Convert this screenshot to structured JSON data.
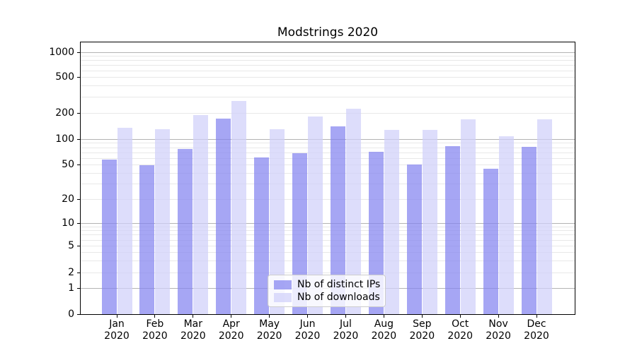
{
  "chart_data": {
    "type": "bar",
    "title": "Modstrings 2020",
    "xlabel": "",
    "ylabel": "",
    "yscale": "symlog",
    "grid": true,
    "legend_position": "lower center",
    "yticks": [
      0,
      1,
      2,
      5,
      10,
      20,
      50,
      100,
      200,
      500,
      1000
    ],
    "ylim": [
      0,
      1200
    ],
    "categories": [
      "Jan 2020",
      "Feb 2020",
      "Mar 2020",
      "Apr 2020",
      "May 2020",
      "Jun 2020",
      "Jul 2020",
      "Aug 2020",
      "Sep 2020",
      "Oct 2020",
      "Nov 2020",
      "Dec 2020"
    ],
    "series": [
      {
        "name": "Nb of distinct IPs",
        "key": "ips",
        "values": [
          57,
          49,
          76,
          172,
          61,
          68,
          140,
          71,
          50,
          83,
          45,
          81
        ]
      },
      {
        "name": "Nb of downloads",
        "key": "downloads",
        "values": [
          135,
          130,
          189,
          270,
          130,
          182,
          222,
          128,
          128,
          170,
          108,
          168
        ]
      }
    ],
    "colors": {
      "ips": "rgba(132,132,240,0.72)",
      "downloads": "rgba(208,208,250,0.72)",
      "major_grid": "#b3b3b3",
      "minor_grid": "#e8e8e8",
      "spine": "#000000"
    }
  }
}
